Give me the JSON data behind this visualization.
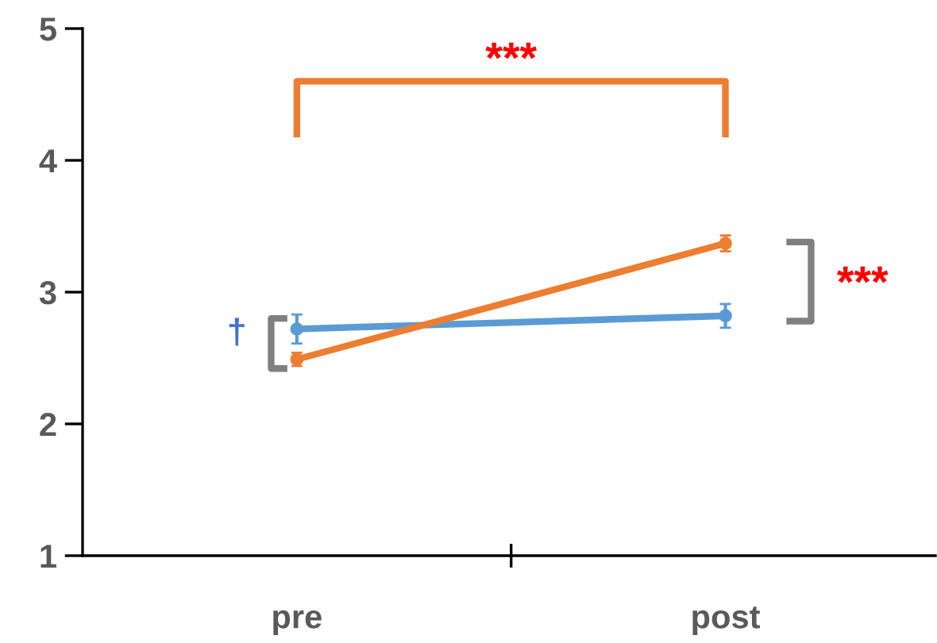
{
  "chart_data": {
    "type": "line",
    "categories": [
      "pre",
      "post"
    ],
    "series": [
      {
        "color": "#5b9bd5",
        "values": [
          2.72,
          2.82
        ],
        "errors": [
          0.11,
          0.09
        ]
      },
      {
        "color": "#ed7d31",
        "values": [
          2.49,
          3.37
        ],
        "errors": [
          0.05,
          0.06
        ]
      }
    ],
    "ylim": [
      1,
      5
    ],
    "yticks": [
      1,
      2,
      3,
      4,
      5
    ],
    "marker": "circle",
    "line_style": "solid",
    "grid": false,
    "legend": false,
    "annotations": [
      "***",
      "***",
      "†"
    ]
  }
}
